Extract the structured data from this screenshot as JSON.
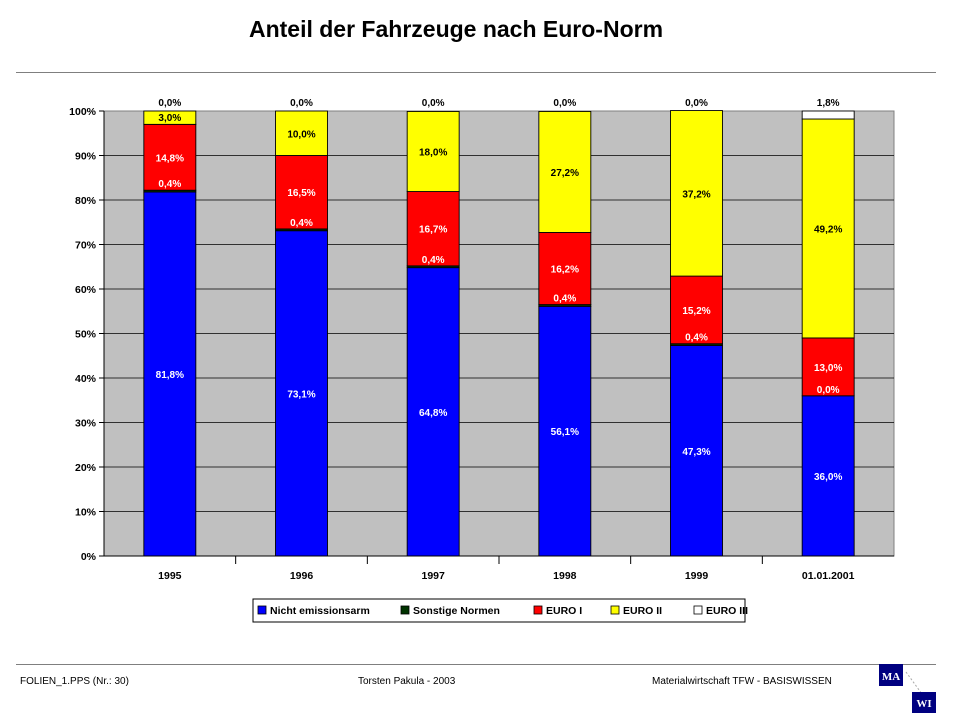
{
  "slide": {
    "title": "Anteil der Fahrzeuge nach Euro-Norm"
  },
  "footer": {
    "file": "FOLIEN_1.PPS (Nr.: 30)",
    "author": "Torsten Pakula - 2003",
    "course": "Materialwirtschaft TFW - BASISWISSEN"
  },
  "logo": {
    "top_text": "MA",
    "bottom_text": "WI"
  },
  "chart_data": {
    "type": "bar",
    "stacked": true,
    "title": "",
    "xlabel": "",
    "ylabel": "",
    "ylim": [
      0,
      100
    ],
    "grid": "horizontal",
    "legend_position": "bottom",
    "plot_background": "#c0c0c0",
    "categories": [
      "1995",
      "1996",
      "1997",
      "1998",
      "1999",
      "01.01.2001"
    ],
    "yticks": [
      "0%",
      "10%",
      "20%",
      "30%",
      "40%",
      "50%",
      "60%",
      "70%",
      "80%",
      "90%",
      "100%"
    ],
    "series": [
      {
        "name": "Nicht emissionsarm",
        "color": "#0000ff",
        "values": [
          81.8,
          73.1,
          64.8,
          56.1,
          47.3,
          36.0
        ],
        "labels": [
          "81,8%",
          "73,1%",
          "64,8%",
          "56,1%",
          "47,3%",
          "36,0%"
        ]
      },
      {
        "name": "Sonstige Normen",
        "color": "#003300",
        "values": [
          0.4,
          0.4,
          0.4,
          0.4,
          0.4,
          0.0
        ],
        "labels": [
          "0,4%",
          "0,4%",
          "0,4%",
          "0,4%",
          "0,4%",
          "0,0%"
        ]
      },
      {
        "name": "EURO I",
        "color": "#ff0000",
        "values": [
          14.8,
          16.5,
          16.7,
          16.2,
          15.2,
          13.0
        ],
        "labels": [
          "14,8%",
          "16,5%",
          "16,7%",
          "16,2%",
          "15,2%",
          "13,0%"
        ]
      },
      {
        "name": "EURO II",
        "color": "#ffff00",
        "values": [
          3.0,
          10.0,
          18.0,
          27.2,
          37.2,
          49.2
        ],
        "labels": [
          "3,0%",
          "10,0%",
          "18,0%",
          "27,2%",
          "37,2%",
          "49,2%"
        ]
      },
      {
        "name": "EURO III",
        "color": "#ffffff",
        "values": [
          0.0,
          0.0,
          0.0,
          0.0,
          0.0,
          1.8
        ],
        "labels": [
          "0,0%",
          "0,0%",
          "0,0%",
          "0,0%",
          "0,0%",
          "1,8%"
        ]
      }
    ]
  }
}
